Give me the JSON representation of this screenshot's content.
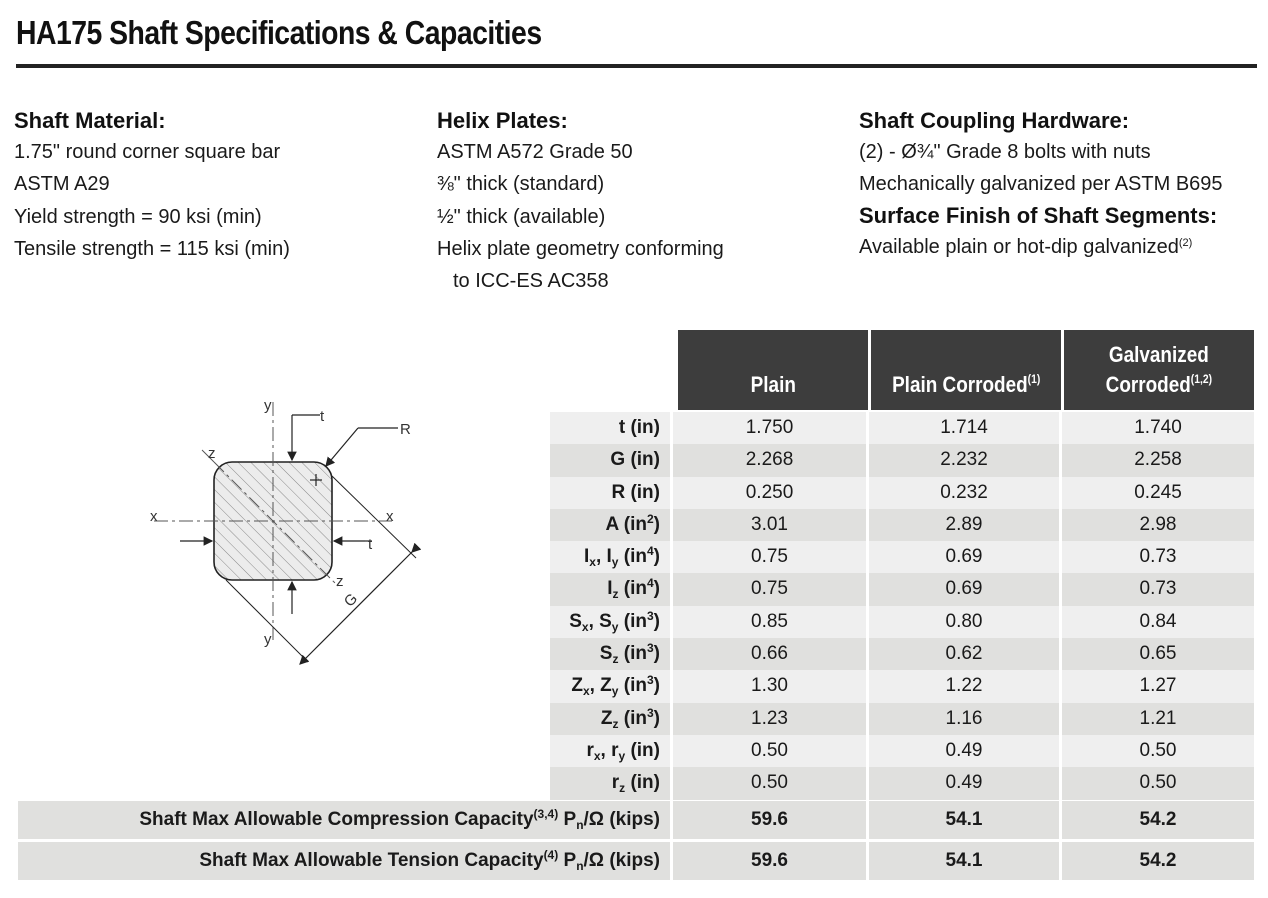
{
  "title": "HA175 Shaft Specifications & Capacities",
  "shaft_material": {
    "heading": "Shaft Material:",
    "lines": [
      "1.75\" round corner square bar",
      "ASTM A29",
      "Yield strength = 90 ksi (min)",
      "Tensile strength = 115 ksi (min)"
    ]
  },
  "helix_plates": {
    "heading": "Helix Plates:",
    "lines": [
      "ASTM A572 Grade 50",
      "⅜\" thick (standard)",
      "½\" thick (available)",
      "Helix plate geometry conforming",
      "to ICC-ES AC358"
    ]
  },
  "coupling": {
    "heading": "Shaft Coupling Hardware:",
    "lines": [
      "(2) - Ø¾\" Grade 8 bolts with nuts",
      "Mechanically galvanized per ASTM B695"
    ]
  },
  "surface_finish": {
    "heading": "Surface Finish of Shaft Segments:",
    "line": "Available plain or hot-dip galvanized",
    "note": "(2)"
  },
  "diagram_labels": {
    "y": "y",
    "t": "t",
    "r": "R",
    "z": "z",
    "x": "x",
    "g": "G"
  },
  "table": {
    "headers": [
      {
        "label": "Plain",
        "note": ""
      },
      {
        "label": "Plain Corroded",
        "note": "(1)"
      },
      {
        "label_line1": "Galvanized",
        "label": "Corroded",
        "note": "(1,2)"
      }
    ],
    "rows": [
      {
        "base": "t",
        "sub": "",
        "rest": "",
        "sub2": "",
        "unit": " (in",
        "exp": "",
        "values": [
          "1.750",
          "1.714",
          "1.740"
        ]
      },
      {
        "base": "G",
        "sub": "",
        "rest": "",
        "sub2": "",
        "unit": " (in",
        "exp": "",
        "values": [
          "2.268",
          "2.232",
          "2.258"
        ]
      },
      {
        "base": "R",
        "sub": "",
        "rest": "",
        "sub2": "",
        "unit": " (in",
        "exp": "",
        "values": [
          "0.250",
          "0.232",
          "0.245"
        ]
      },
      {
        "base": "A",
        "sub": "",
        "rest": "",
        "sub2": "",
        "unit": " (in",
        "exp": "2",
        "values": [
          "3.01",
          "2.89",
          "2.98"
        ]
      },
      {
        "base": "I",
        "sub": "x",
        "rest": ", I",
        "sub2": "y",
        "unit": " (in",
        "exp": "4",
        "values": [
          "0.75",
          "0.69",
          "0.73"
        ]
      },
      {
        "base": "I",
        "sub": "z",
        "rest": "",
        "sub2": "",
        "unit": " (in",
        "exp": "4",
        "values": [
          "0.75",
          "0.69",
          "0.73"
        ]
      },
      {
        "base": "S",
        "sub": "x",
        "rest": ", S",
        "sub2": "y",
        "unit": " (in",
        "exp": "3",
        "values": [
          "0.85",
          "0.80",
          "0.84"
        ]
      },
      {
        "base": "S",
        "sub": "z",
        "rest": "",
        "sub2": "",
        "unit": " (in",
        "exp": "3",
        "values": [
          "0.66",
          "0.62",
          "0.65"
        ]
      },
      {
        "base": "Z",
        "sub": "x",
        "rest": ", Z",
        "sub2": "y",
        "unit": " (in",
        "exp": "3",
        "values": [
          "1.30",
          "1.22",
          "1.27"
        ]
      },
      {
        "base": "Z",
        "sub": "z",
        "rest": "",
        "sub2": "",
        "unit": " (in",
        "exp": "3",
        "values": [
          "1.23",
          "1.16",
          "1.21"
        ]
      },
      {
        "base": "r",
        "sub": "x",
        "rest": ", r",
        "sub2": "y",
        "unit": " (in",
        "exp": "",
        "values": [
          "0.50",
          "0.49",
          "0.50"
        ]
      },
      {
        "base": "r",
        "sub": "z",
        "rest": "",
        "sub2": "",
        "unit": " (in",
        "exp": "",
        "values": [
          "0.50",
          "0.49",
          "0.50"
        ]
      }
    ],
    "capacities": [
      {
        "label": "Shaft Max Allowable Compression Capacity",
        "note": "(3,4)",
        "p": " P",
        "psub": "n",
        "unit": "/Ω (kips)",
        "values": [
          "59.6",
          "54.1",
          "54.2"
        ]
      },
      {
        "label": "Shaft Max Allowable Tension Capacity",
        "note": "(4)",
        "p": " P",
        "psub": "n",
        "unit": "/Ω (kips)",
        "values": [
          "59.6",
          "54.1",
          "54.2"
        ]
      }
    ]
  }
}
